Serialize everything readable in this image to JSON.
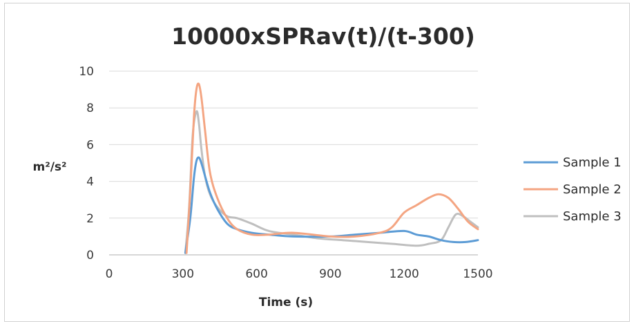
{
  "chart_data": {
    "type": "line",
    "title": "10000xSPRav(t)/(t-300)",
    "xlabel": "Time (s)",
    "ylabel": "m²/s²",
    "xlim": [
      0,
      1500
    ],
    "ylim": [
      0,
      10
    ],
    "xticks": [
      0,
      300,
      600,
      900,
      1200,
      1500
    ],
    "yticks": [
      0,
      2,
      4,
      6,
      8,
      10
    ],
    "grid": true,
    "legend_position": "right",
    "series": [
      {
        "name": "Sample 1",
        "color": "#5b9bd5",
        "x": [
          310,
          330,
          345,
          355,
          365,
          375,
          390,
          410,
          440,
          480,
          520,
          580,
          650,
          750,
          900,
          1000,
          1100,
          1200,
          1250,
          1300,
          1350,
          1400,
          1450,
          1500
        ],
        "y": [
          0.1,
          2.0,
          4.2,
          5.1,
          5.3,
          5.0,
          4.3,
          3.4,
          2.5,
          1.7,
          1.4,
          1.2,
          1.1,
          1.0,
          1.0,
          1.1,
          1.2,
          1.3,
          1.1,
          1.0,
          0.8,
          0.7,
          0.7,
          0.8
        ]
      },
      {
        "name": "Sample 2",
        "color": "#f4a582",
        "x": [
          315,
          330,
          345,
          355,
          365,
          375,
          390,
          410,
          440,
          480,
          520,
          580,
          650,
          750,
          900,
          1000,
          1100,
          1150,
          1200,
          1250,
          1300,
          1340,
          1380,
          1420,
          1460,
          1500
        ],
        "y": [
          0.1,
          3.5,
          7.5,
          9.0,
          9.3,
          8.6,
          6.8,
          4.5,
          3.1,
          2.0,
          1.4,
          1.1,
          1.1,
          1.2,
          1.0,
          1.0,
          1.2,
          1.5,
          2.3,
          2.7,
          3.1,
          3.3,
          3.1,
          2.5,
          1.8,
          1.4
        ]
      },
      {
        "name": "Sample 3",
        "color": "#bfbfbf",
        "x": [
          310,
          325,
          340,
          355,
          365,
          375,
          390,
          410,
          440,
          480,
          520,
          580,
          650,
          750,
          850,
          950,
          1050,
          1150,
          1250,
          1300,
          1350,
          1380,
          1410,
          1440,
          1470,
          1500
        ],
        "y": [
          0.1,
          2.5,
          6.5,
          7.8,
          7.2,
          5.8,
          4.3,
          3.3,
          2.6,
          2.1,
          2.0,
          1.7,
          1.3,
          1.1,
          0.9,
          0.8,
          0.7,
          0.6,
          0.5,
          0.6,
          0.8,
          1.5,
          2.2,
          2.1,
          1.8,
          1.5
        ]
      }
    ]
  }
}
